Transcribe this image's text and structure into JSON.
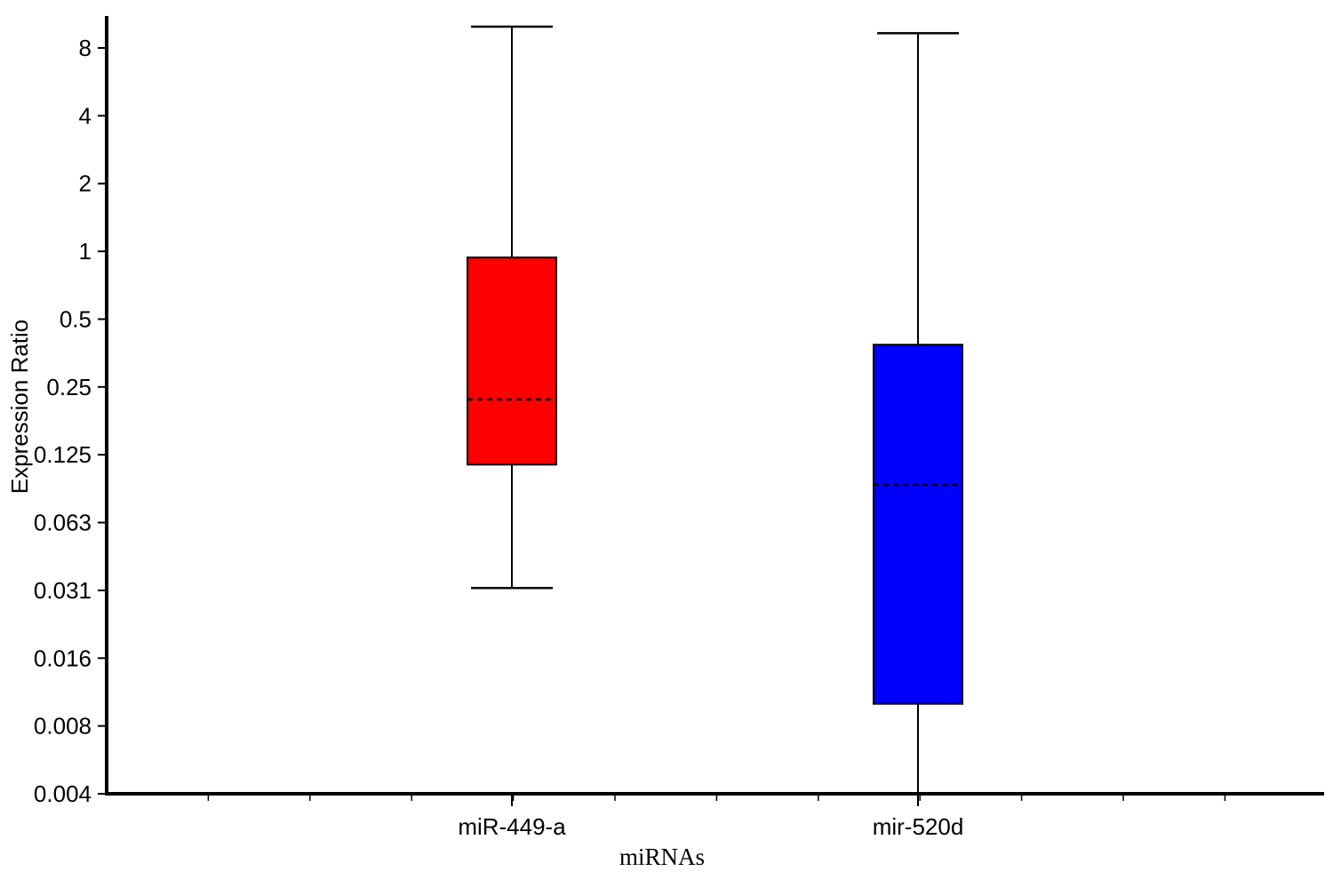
{
  "chart_data": {
    "type": "box",
    "title": "",
    "xlabel": "miRNAs",
    "ylabel": "Expression Ratio",
    "y_scale": "log2",
    "ylim": [
      0.004,
      10
    ],
    "y_ticks": [
      {
        "value": 8,
        "label": "8"
      },
      {
        "value": 4,
        "label": "4"
      },
      {
        "value": 2,
        "label": "2"
      },
      {
        "value": 1,
        "label": "1"
      },
      {
        "value": 0.5,
        "label": "0.5"
      },
      {
        "value": 0.25,
        "label": "0.25"
      },
      {
        "value": 0.125,
        "label": "0.125"
      },
      {
        "value": 0.0625,
        "label": "0.063"
      },
      {
        "value": 0.03125,
        "label": "0.031"
      },
      {
        "value": 0.015625,
        "label": "0.016"
      },
      {
        "value": 0.0078125,
        "label": "0.008"
      },
      {
        "value": 0.00390625,
        "label": "0.004"
      }
    ],
    "categories": [
      "miR-449-a",
      "mir-520d"
    ],
    "boxes": [
      {
        "category": "miR-449-a",
        "color": "#ff0000",
        "whisker_low": 0.032,
        "q1": 0.113,
        "median": 0.22,
        "q3": 0.94,
        "whisker_high": 10.5
      },
      {
        "category": "mir-520d",
        "color": "#0000ff",
        "whisker_low": 0.0039,
        "q1": 0.0098,
        "median": 0.092,
        "q3": 0.385,
        "whisker_high": 9.3
      }
    ],
    "grid": false,
    "legend": "none"
  }
}
